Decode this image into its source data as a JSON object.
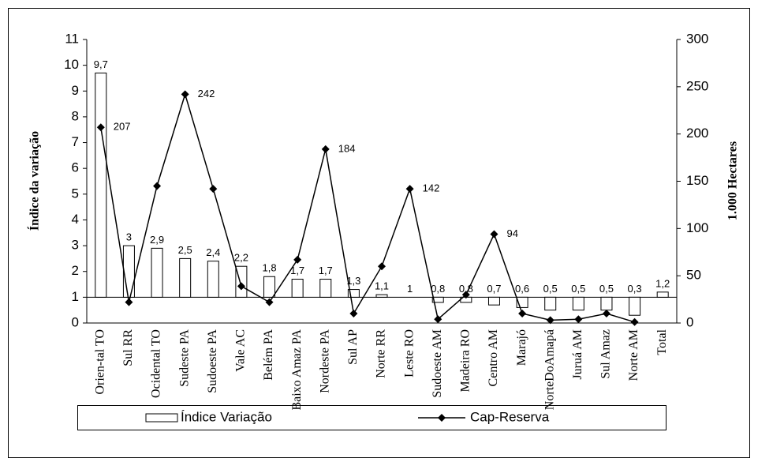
{
  "chart_data": {
    "type": "bar-line",
    "categories": [
      "Orien-tal TO",
      "Sul RR",
      "Ocidental TO",
      "Sudeste PA",
      "Sudoeste PA",
      "Vale AC",
      "Belém PA",
      "Baixo Amaz PA",
      "Nordeste PA",
      "Sul AP",
      "Norte RR",
      "Leste RO",
      "Sudoeste AM",
      "Madeira RO",
      "Centro AM",
      "Marajó",
      "NorteDoAmapá",
      "Juruá AM",
      "Sul Amaz",
      "Norte AM",
      "Total"
    ],
    "series": [
      {
        "name": "Índice Variação",
        "type": "bar",
        "color": "#ffffff",
        "values": [
          9.7,
          3,
          2.9,
          2.5,
          2.4,
          2.2,
          1.8,
          1.7,
          1.7,
          1.3,
          1.1,
          1,
          0.8,
          0.8,
          0.7,
          0.6,
          0.5,
          0.5,
          0.5,
          0.3,
          1.2
        ],
        "value_labels": [
          "9,7",
          "3",
          "2,9",
          "2,5",
          "2,4",
          "2,2",
          "1,8",
          "1,7",
          "1,7",
          "1,3",
          "1,1",
          "1",
          "0,8",
          "0,8",
          "0,7",
          "0,6",
          "0,5",
          "0,5",
          "0,5",
          "0,3",
          "1,2"
        ]
      },
      {
        "name": "Cap-Reserva",
        "type": "line",
        "axis": "y2",
        "color": "#000000",
        "values": [
          207,
          22,
          145,
          242,
          142,
          39,
          22,
          67,
          184,
          10,
          60,
          142,
          4,
          30,
          94,
          10,
          3,
          4,
          10,
          1,
          null
        ],
        "value_labels": [
          "207",
          null,
          null,
          "242",
          null,
          null,
          null,
          null,
          "184",
          null,
          null,
          "142",
          null,
          null,
          "94",
          null,
          null,
          null,
          null,
          null,
          null
        ]
      }
    ],
    "bar_base": 1,
    "ylabel": "Índice da variação",
    "y2label": "1.000 Hectares",
    "ylim": [
      0,
      11
    ],
    "yticks": [
      0,
      1,
      2,
      3,
      4,
      5,
      6,
      7,
      8,
      9,
      10,
      11
    ],
    "y2lim": [
      0,
      300
    ],
    "y2ticks": [
      0,
      50,
      100,
      150,
      200,
      250,
      300
    ],
    "grid": false,
    "legend": "bottom"
  }
}
